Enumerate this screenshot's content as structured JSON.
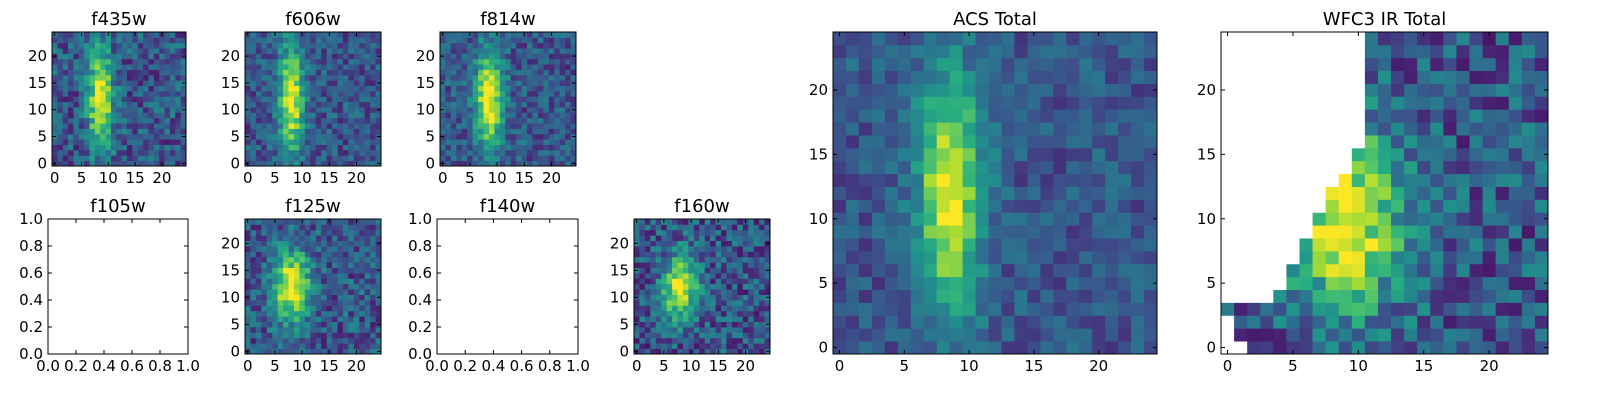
{
  "chart_data": [
    {
      "type": "heatmap",
      "title": "f435w",
      "colormap": "viridis",
      "x_ticks": [
        "0",
        "5",
        "10",
        "15",
        "20"
      ],
      "y_ticks": [
        "0",
        "5",
        "10",
        "15",
        "20"
      ],
      "xlim": [
        -0.5,
        24.5
      ],
      "ylim": [
        -0.5,
        24.5
      ],
      "grid_size": 25,
      "source": {
        "center_x": 8.5,
        "center_y": 12,
        "sigma_x": 1.6,
        "sigma_y": 6.5,
        "noise": 0.18,
        "seed": 11
      }
    },
    {
      "type": "heatmap",
      "title": "f606w",
      "colormap": "viridis",
      "x_ticks": [
        "0",
        "5",
        "10",
        "15",
        "20"
      ],
      "y_ticks": [
        "0",
        "5",
        "10",
        "15",
        "20"
      ],
      "xlim": [
        -0.5,
        24.5
      ],
      "ylim": [
        -0.5,
        24.5
      ],
      "grid_size": 25,
      "source": {
        "center_x": 8,
        "center_y": 12,
        "sigma_x": 1.6,
        "sigma_y": 7,
        "noise": 0.15,
        "seed": 23
      }
    },
    {
      "type": "heatmap",
      "title": "f814w",
      "colormap": "viridis",
      "x_ticks": [
        "0",
        "5",
        "10",
        "15",
        "20"
      ],
      "y_ticks": [
        "0",
        "5",
        "10",
        "15",
        "20"
      ],
      "xlim": [
        -0.5,
        24.5
      ],
      "ylim": [
        -0.5,
        24.5
      ],
      "grid_size": 25,
      "source": {
        "center_x": 8.5,
        "center_y": 12,
        "sigma_x": 1.8,
        "sigma_y": 6.5,
        "noise": 0.15,
        "seed": 37
      }
    },
    {
      "type": "empty",
      "title": "f105w",
      "x_ticks": [
        "0.0",
        "0.2",
        "0.4",
        "0.6",
        "0.8",
        "1.0"
      ],
      "y_ticks": [
        "0.0",
        "0.2",
        "0.4",
        "0.6",
        "0.8",
        "1.0"
      ],
      "xlim": [
        0,
        1
      ],
      "ylim": [
        0,
        1
      ]
    },
    {
      "type": "heatmap",
      "title": "f125w",
      "colormap": "viridis",
      "x_ticks": [
        "0",
        "5",
        "10",
        "15",
        "20"
      ],
      "y_ticks": [
        "0",
        "5",
        "10",
        "15",
        "20"
      ],
      "xlim": [
        -0.5,
        24.5
      ],
      "ylim": [
        -0.5,
        24.5
      ],
      "grid_size": 25,
      "source": {
        "center_x": 8,
        "center_y": 12,
        "sigma_x": 2.5,
        "sigma_y": 4.5,
        "noise": 0.18,
        "seed": 51
      }
    },
    {
      "type": "empty",
      "title": "f140w",
      "x_ticks": [
        "0.0",
        "0.2",
        "0.4",
        "0.6",
        "0.8",
        "1.0"
      ],
      "y_ticks": [
        "0.0",
        "0.2",
        "0.4",
        "0.6",
        "0.8",
        "1.0"
      ],
      "xlim": [
        0,
        1
      ],
      "ylim": [
        0,
        1
      ]
    },
    {
      "type": "heatmap",
      "title": "f160w",
      "colormap": "viridis",
      "x_ticks": [
        "0",
        "5",
        "10",
        "15",
        "20"
      ],
      "y_ticks": [
        "0",
        "5",
        "10",
        "15",
        "20"
      ],
      "xlim": [
        -0.5,
        24.5
      ],
      "ylim": [
        -0.5,
        24.5
      ],
      "grid_size": 25,
      "source": {
        "center_x": 8,
        "center_y": 12,
        "sigma_x": 2.2,
        "sigma_y": 4,
        "noise": 0.2,
        "seed": 67
      }
    },
    {
      "type": "heatmap",
      "title": "ACS Total",
      "colormap": "viridis",
      "x_ticks": [
        "0",
        "5",
        "10",
        "15",
        "20"
      ],
      "y_ticks": [
        "0",
        "5",
        "10",
        "15",
        "20"
      ],
      "xlim": [
        -0.5,
        24.5
      ],
      "ylim": [
        -0.5,
        24.5
      ],
      "grid_size": 25,
      "source": {
        "center_x": 8.5,
        "center_y": 12,
        "sigma_x": 1.7,
        "sigma_y": 6.5,
        "noise": 0.12,
        "seed": 79
      }
    },
    {
      "type": "heatmap",
      "title": "WFC3 IR Total",
      "colormap": "viridis",
      "x_ticks": [
        "0",
        "5",
        "10",
        "15",
        "20"
      ],
      "y_ticks": [
        "0",
        "5",
        "10",
        "15",
        "20"
      ],
      "xlim": [
        -0.5,
        24.5
      ],
      "ylim": [
        -0.5,
        24.5
      ],
      "grid_size": 25,
      "source": {
        "center_x": 9,
        "center_y": 10,
        "sigma_x": 3,
        "sigma_y": 5,
        "noise": 0.2,
        "seed": 97
      },
      "masked_white_region": "upper-left"
    }
  ]
}
